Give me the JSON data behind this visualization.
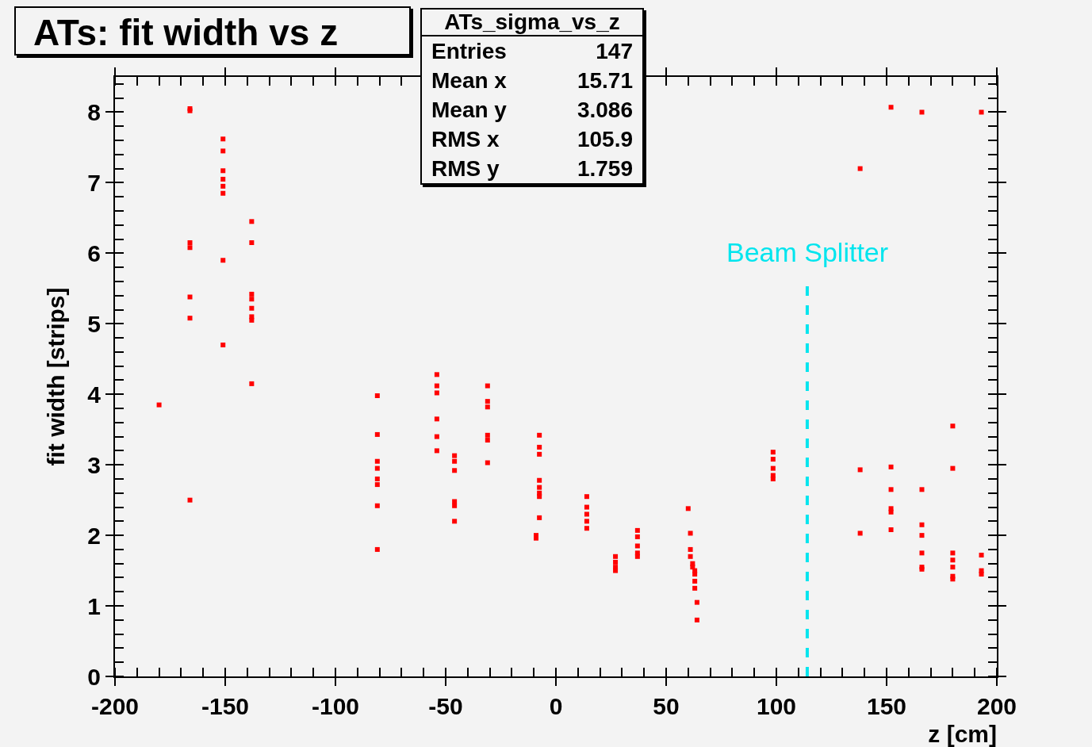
{
  "chart_data": {
    "type": "scatter",
    "title": "ATs: fit width vs z",
    "xlabel": "z [cm]",
    "ylabel": "fit width [strips]",
    "annotations": [
      "ATs_sigma_vs_z",
      "Entries",
      "147",
      "Mean x",
      "15.71",
      "Mean y",
      "3.086",
      "RMS x",
      "105.9",
      "RMS y",
      "1.759"
    ],
    "series": [
      {
        "color": "#ff0000",
        "x": [
          -180,
          -166,
          -166,
          -166,
          -166,
          -166,
          -166,
          -166,
          -151,
          -151,
          -151,
          -151,
          -151,
          -151,
          -151,
          -151,
          -138,
          -138,
          -138,
          -138,
          -138,
          -138,
          -138,
          -138,
          -81,
          -81,
          -81,
          -81,
          -81,
          -81,
          -81,
          -81,
          -54,
          -54,
          -54,
          -54,
          -54,
          -54,
          -46,
          -46,
          -46,
          -46,
          -46,
          -46,
          -31,
          -31,
          -31,
          -31,
          -31,
          -31,
          -7.5,
          -7.5,
          -7.5,
          -7.5,
          -7.5,
          -7.5,
          -7.5,
          -7.5,
          -9,
          -9,
          14,
          14,
          14,
          14,
          14,
          27,
          27,
          27,
          27,
          37,
          37,
          37,
          37,
          37,
          60,
          61,
          61,
          61,
          62,
          62,
          63,
          63,
          63,
          63,
          64,
          64,
          98.5,
          98.5,
          98.5,
          98.5,
          98.5,
          138,
          138,
          138,
          152,
          152,
          152,
          152,
          152,
          152,
          166,
          166,
          166,
          166,
          166,
          166,
          166,
          180,
          180,
          180,
          180,
          180,
          180,
          180,
          193,
          193,
          193,
          193
        ],
        "values": [
          3.85,
          8.05,
          8.02,
          6.15,
          6.08,
          5.38,
          5.08,
          2.5,
          7.62,
          7.45,
          7.17,
          7.05,
          6.95,
          6.85,
          5.9,
          4.7,
          6.45,
          6.15,
          5.42,
          5.35,
          5.22,
          5.1,
          5.05,
          4.15,
          3.98,
          3.43,
          3.05,
          2.95,
          2.8,
          2.72,
          2.42,
          1.8,
          4.28,
          4.12,
          4.02,
          3.65,
          3.4,
          3.2,
          3.13,
          3.05,
          2.92,
          2.48,
          2.42,
          2.2,
          4.12,
          3.9,
          3.82,
          3.42,
          3.35,
          3.03,
          3.42,
          3.25,
          3.15,
          2.78,
          2.68,
          2.6,
          2.55,
          2.25,
          2.0,
          1.96,
          2.55,
          2.4,
          2.3,
          2.2,
          2.1,
          1.7,
          1.62,
          1.55,
          1.5,
          2.07,
          1.98,
          1.85,
          1.75,
          1.7,
          2.38,
          2.03,
          1.8,
          1.7,
          1.6,
          1.55,
          1.5,
          1.45,
          1.35,
          1.25,
          1.05,
          0.8,
          3.18,
          3.08,
          2.95,
          2.85,
          2.8,
          7.2,
          2.93,
          2.03,
          8.07,
          2.97,
          2.65,
          2.38,
          2.33,
          2.08,
          8.0,
          2.65,
          2.15,
          2.0,
          1.75,
          1.55,
          1.52,
          3.55,
          2.95,
          1.75,
          1.65,
          1.55,
          1.42,
          1.38,
          8.0,
          1.72,
          1.5,
          1.45
        ]
      }
    ],
    "xlim": [
      -200,
      200
    ],
    "xticks": [
      -200,
      -150,
      -100,
      -50,
      0,
      50,
      100,
      150,
      200
    ],
    "ylim": [
      0,
      8.5
    ],
    "yticks": [
      0,
      1,
      2,
      3,
      4,
      5,
      6,
      7,
      8
    ],
    "ref_lines": [
      {
        "axis": "x",
        "value": 114,
        "label": "Beam Splitter",
        "color": "#00e5ee",
        "line_style": "dashed"
      }
    ],
    "grid": false,
    "marker": "square"
  }
}
